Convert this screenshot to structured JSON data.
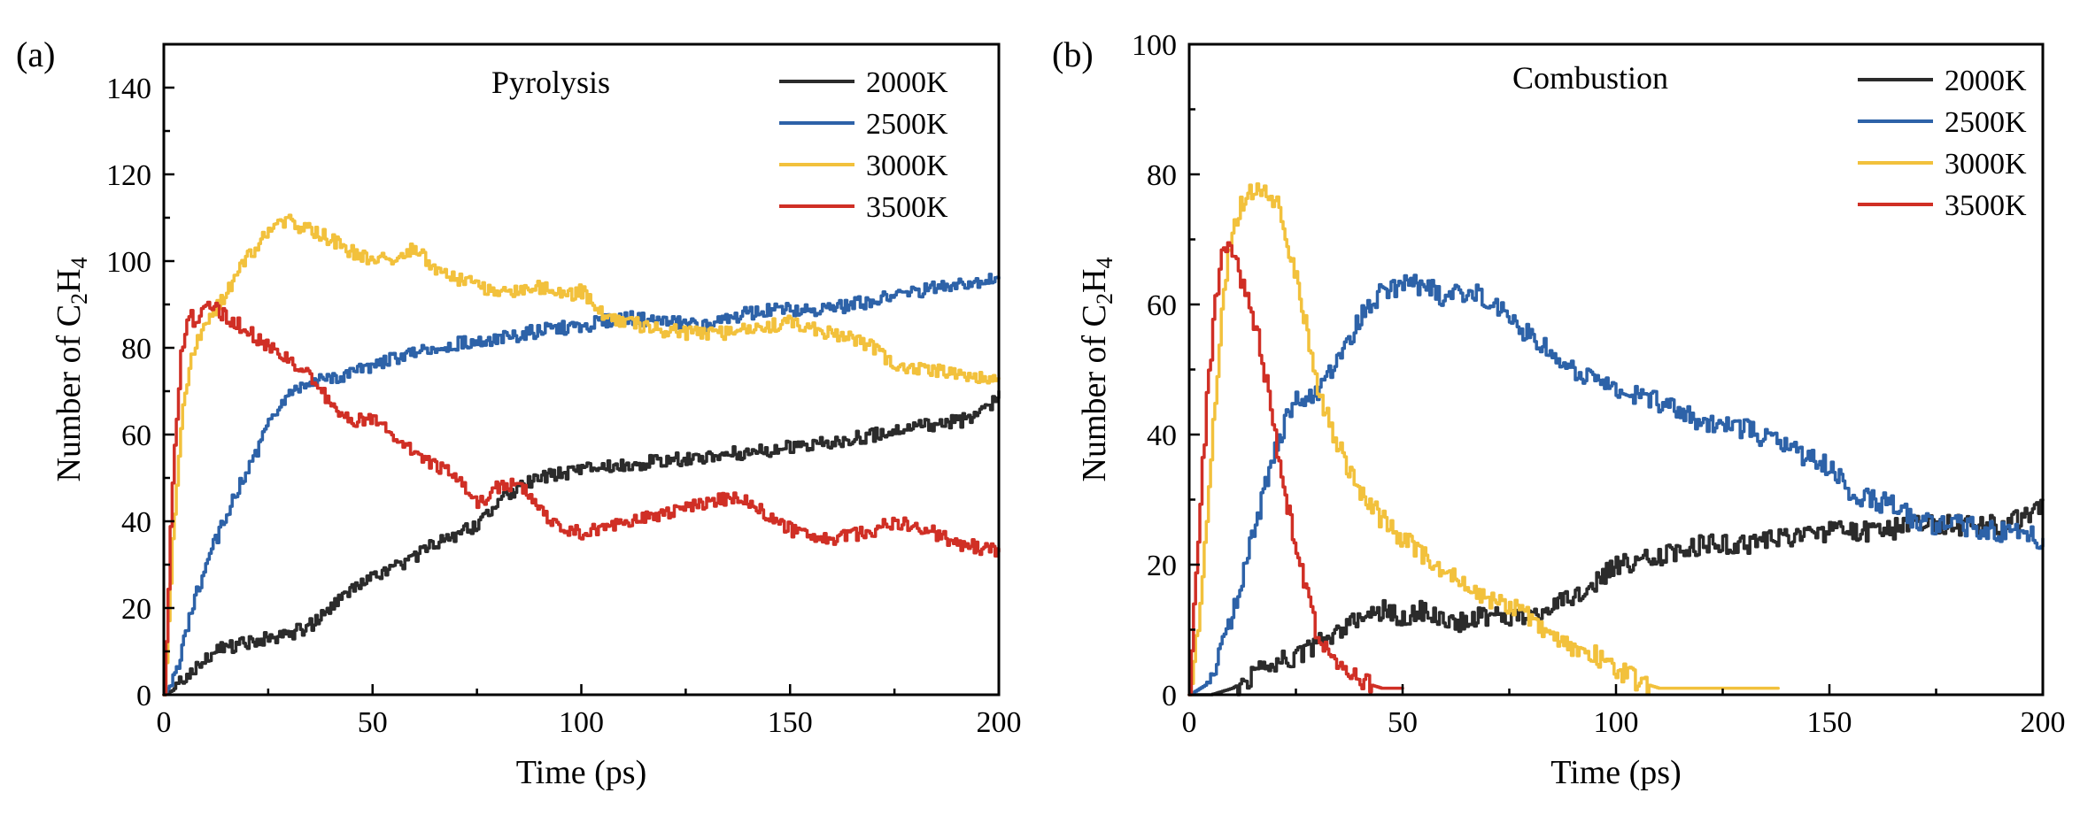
{
  "chart_data": [
    {
      "type": "line",
      "panel_label": "(a)",
      "annotation": "Pyrolysis",
      "xlabel": "Time (ps)",
      "ylabel_prefix": "Number of C",
      "ylabel_sub1": "2",
      "ylabel_mid": "H",
      "ylabel_sub2": "4",
      "xlim": [
        0,
        200
      ],
      "ylim": [
        0,
        150
      ],
      "xticks": [
        0,
        50,
        100,
        150,
        200
      ],
      "yticks": [
        0,
        20,
        40,
        60,
        80,
        100,
        120,
        140
      ],
      "legend_position": "top-right",
      "grid": false,
      "series": [
        {
          "name": "2000K",
          "color": "#2b2b2b",
          "x": [
            0,
            2,
            5,
            10,
            15,
            20,
            25,
            30,
            35,
            40,
            45,
            50,
            55,
            60,
            65,
            70,
            75,
            80,
            85,
            90,
            100,
            110,
            120,
            130,
            140,
            150,
            160,
            170,
            180,
            190,
            195,
            198,
            200
          ],
          "y": [
            0,
            1,
            4,
            9,
            11,
            12,
            13,
            14,
            16,
            20,
            24,
            27,
            29,
            32,
            35,
            37,
            39,
            44,
            48,
            50,
            52,
            53,
            54,
            55,
            56,
            57,
            58,
            60,
            62,
            63,
            64,
            67,
            70
          ]
        },
        {
          "name": "2500K",
          "color": "#2d62a8",
          "x": [
            0,
            3,
            6,
            10,
            15,
            20,
            25,
            30,
            35,
            40,
            45,
            50,
            60,
            70,
            80,
            90,
            100,
            110,
            120,
            130,
            140,
            150,
            160,
            170,
            180,
            190,
            200
          ],
          "y": [
            0,
            5,
            18,
            30,
            42,
            52,
            62,
            70,
            72,
            73,
            74,
            76,
            79,
            81,
            82,
            84,
            85,
            87,
            86,
            85,
            88,
            89,
            89,
            91,
            93,
            95,
            96
          ]
        },
        {
          "name": "3000K",
          "color": "#f2c13c",
          "x": [
            0,
            2,
            4,
            6,
            8,
            10,
            15,
            20,
            25,
            30,
            35,
            40,
            45,
            50,
            55,
            60,
            65,
            70,
            80,
            90,
            95,
            100,
            105,
            110,
            120,
            130,
            140,
            150,
            160,
            165,
            170,
            175,
            180,
            190,
            200
          ],
          "y": [
            0,
            35,
            62,
            76,
            82,
            86,
            93,
            101,
            107,
            109,
            107,
            105,
            102,
            100,
            101,
            103,
            98,
            96,
            93,
            94,
            92,
            93,
            88,
            86,
            84,
            83,
            84,
            86,
            83,
            82,
            80,
            76,
            75,
            74,
            73
          ]
        },
        {
          "name": "3500K",
          "color": "#d02f25",
          "x": [
            0,
            2,
            4,
            6,
            8,
            10,
            12,
            15,
            20,
            25,
            30,
            35,
            40,
            45,
            50,
            55,
            60,
            65,
            70,
            75,
            80,
            85,
            90,
            95,
            100,
            110,
            120,
            130,
            137,
            145,
            150,
            160,
            170,
            175,
            180,
            190,
            200
          ],
          "y": [
            0,
            50,
            78,
            88,
            85,
            90,
            89,
            87,
            84,
            80,
            77,
            73,
            67,
            63,
            64,
            60,
            56,
            53,
            50,
            44,
            48,
            49,
            42,
            39,
            37,
            40,
            42,
            44,
            46,
            41,
            38,
            36,
            38,
            40,
            39,
            35,
            33
          ]
        }
      ]
    },
    {
      "type": "line",
      "panel_label": "(b)",
      "annotation": "Combustion",
      "xlabel": "Time (ps)",
      "ylabel_prefix": "Number of C",
      "ylabel_sub1": "2",
      "ylabel_mid": "H",
      "ylabel_sub2": "4",
      "xlim": [
        0,
        200
      ],
      "ylim": [
        0,
        100
      ],
      "xticks": [
        0,
        50,
        100,
        150,
        200
      ],
      "yticks": [
        0,
        20,
        40,
        60,
        80,
        100
      ],
      "legend_position": "top-right",
      "grid": false,
      "series": [
        {
          "name": "2000K",
          "color": "#2b2b2b",
          "x": [
            0,
            5,
            10,
            15,
            20,
            25,
            30,
            35,
            40,
            45,
            50,
            55,
            60,
            70,
            80,
            90,
            95,
            100,
            110,
            120,
            130,
            140,
            150,
            160,
            170,
            180,
            190,
            195,
            198,
            200
          ],
          "y": [
            0,
            0,
            1,
            3,
            5,
            6,
            8,
            10,
            12,
            13,
            12,
            13,
            11,
            12,
            12,
            15,
            17,
            20,
            21,
            23,
            23,
            24,
            25,
            25,
            26,
            26,
            26,
            27,
            28,
            30
          ]
        },
        {
          "name": "2500K",
          "color": "#2d62a8",
          "x": [
            0,
            5,
            10,
            15,
            20,
            25,
            30,
            35,
            40,
            45,
            50,
            55,
            60,
            65,
            70,
            75,
            80,
            90,
            100,
            110,
            120,
            130,
            140,
            150,
            155,
            160,
            165,
            170,
            175,
            180,
            190,
            200
          ],
          "y": [
            0,
            2,
            12,
            25,
            38,
            46,
            46,
            52,
            58,
            62,
            63,
            63,
            61,
            62,
            61,
            58,
            55,
            50,
            47,
            45,
            42,
            41,
            38,
            35,
            31,
            30,
            29,
            27,
            26,
            26,
            25,
            24
          ]
        },
        {
          "name": "3000K",
          "color": "#f2c13c",
          "x": [
            0,
            2,
            4,
            6,
            8,
            10,
            12,
            15,
            18,
            20,
            22,
            25,
            28,
            30,
            35,
            40,
            45,
            50,
            55,
            60,
            65,
            70,
            75,
            80,
            85,
            90,
            95,
            100,
            105,
            110,
            115,
            120,
            130,
            138
          ],
          "y": [
            0,
            10,
            28,
            45,
            62,
            72,
            75,
            78,
            77,
            76,
            72,
            64,
            54,
            47,
            38,
            31,
            27,
            24,
            21,
            19,
            16,
            15,
            14,
            12,
            9,
            7,
            6,
            4,
            2,
            1,
            1,
            1,
            1,
            1
          ]
        },
        {
          "name": "3500K",
          "color": "#d02f25",
          "x": [
            0,
            2,
            4,
            6,
            8,
            10,
            12,
            14,
            16,
            18,
            20,
            22,
            25,
            28,
            30,
            35,
            40,
            45,
            48,
            50
          ],
          "y": [
            0,
            25,
            45,
            60,
            70,
            68,
            63,
            60,
            55,
            48,
            40,
            32,
            22,
            14,
            9,
            5,
            2,
            1,
            1,
            1
          ]
        }
      ]
    }
  ]
}
